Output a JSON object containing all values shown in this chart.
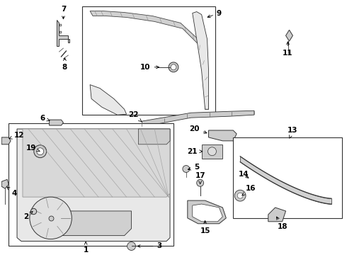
{
  "bg_color": "#ffffff",
  "line_color": "#333333",
  "fill_light": "#e8e8e8",
  "fill_mid": "#cccccc",
  "fill_dark": "#aaaaaa"
}
